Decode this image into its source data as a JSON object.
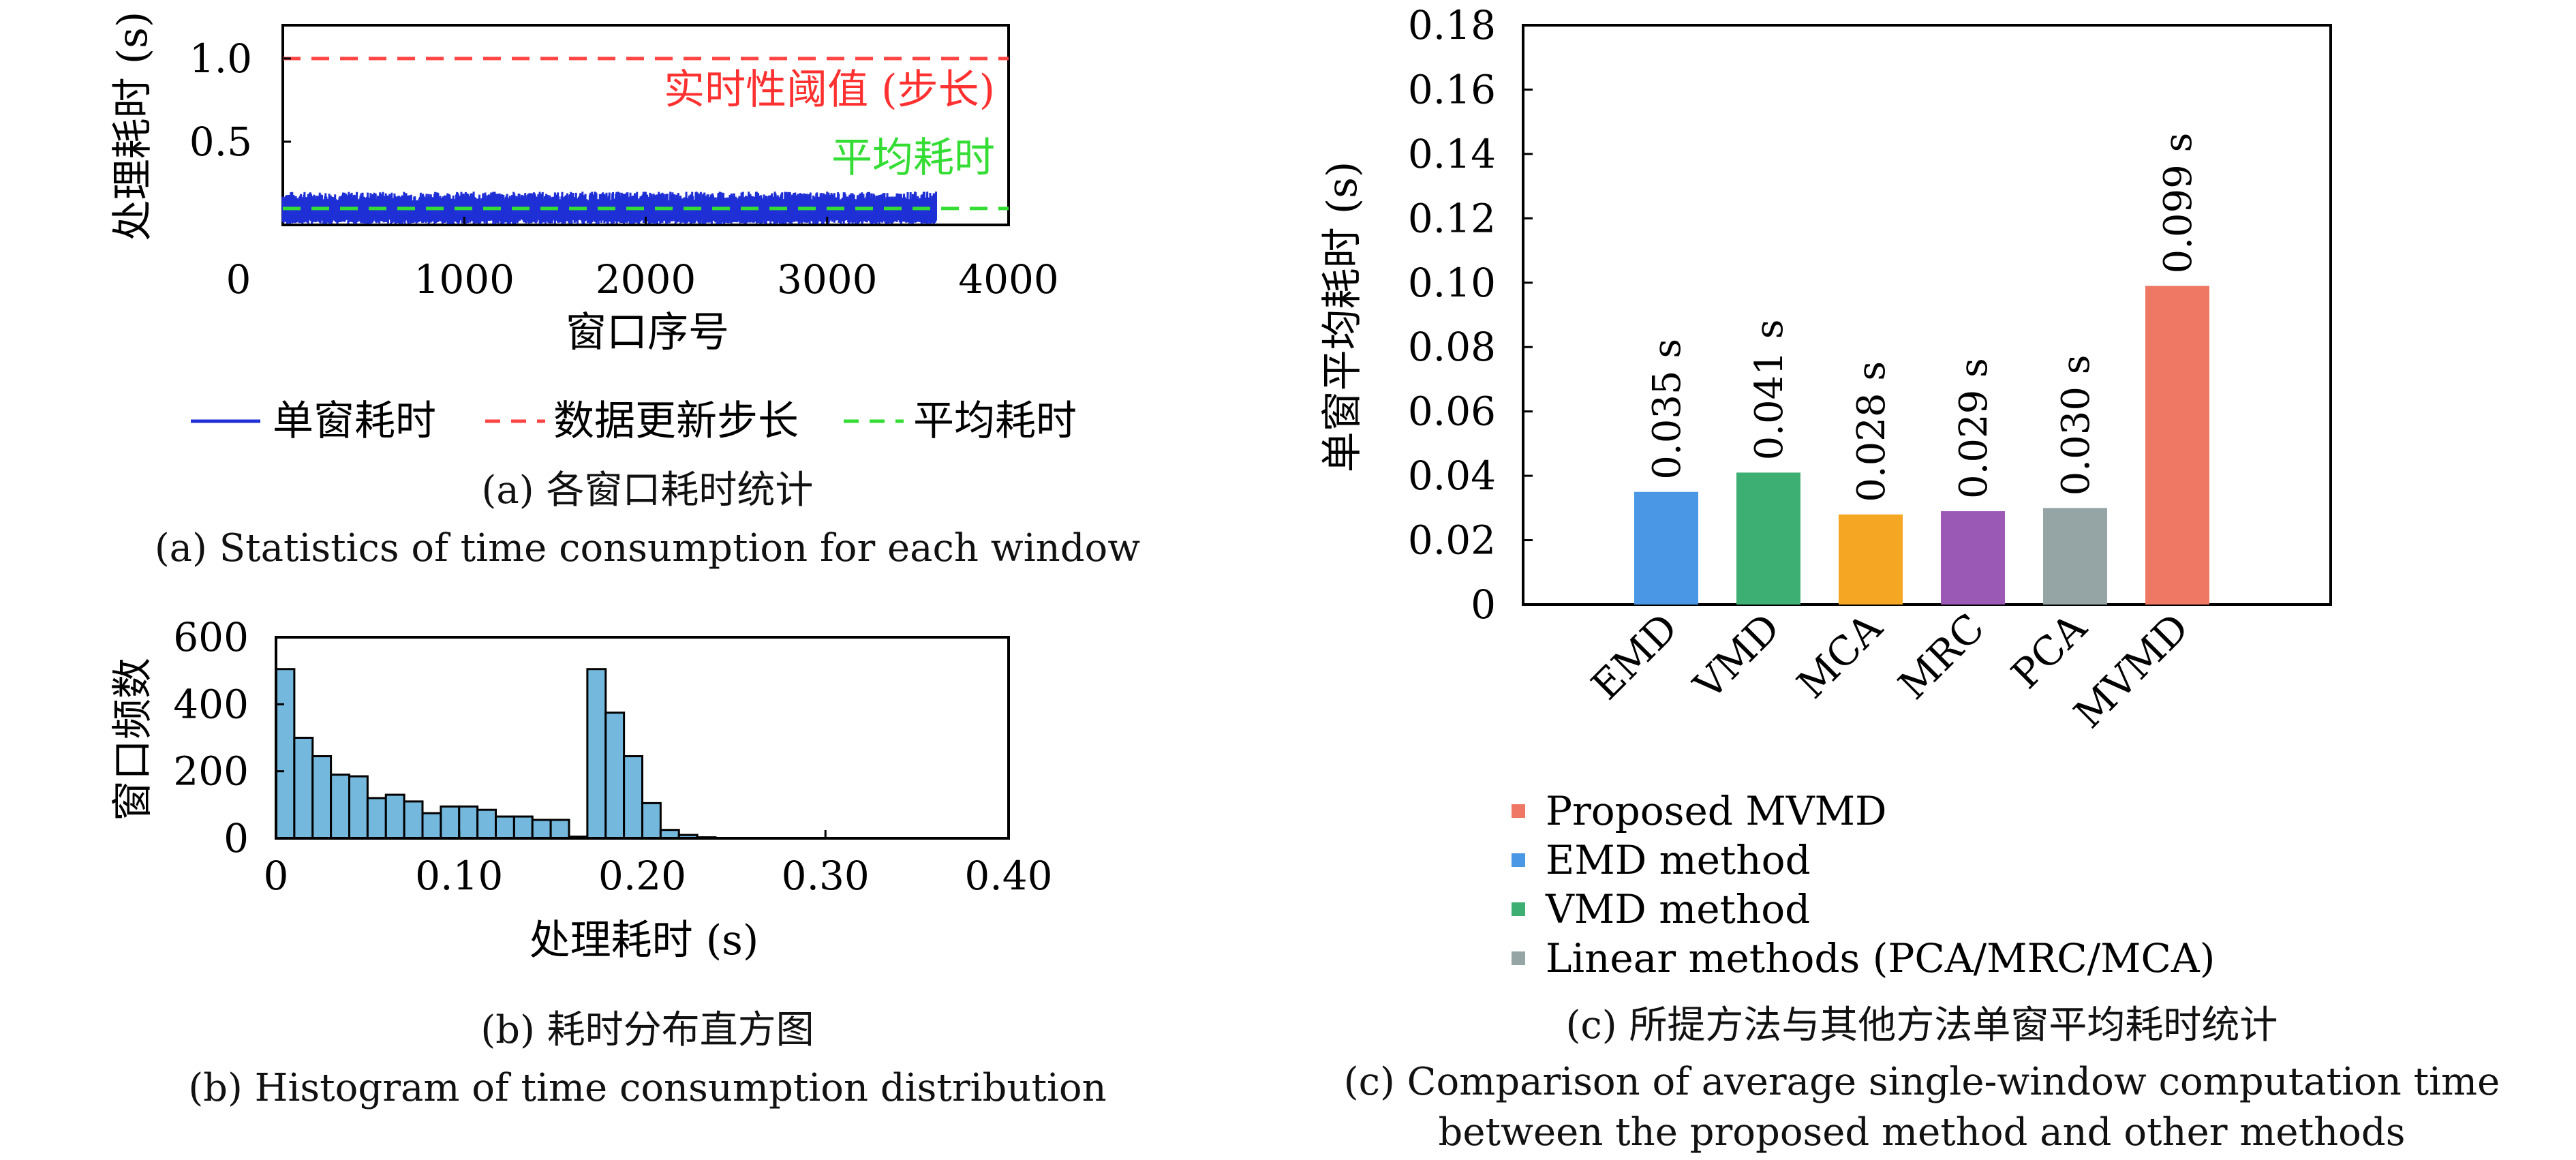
{
  "chart_data": [
    {
      "type": "line",
      "caption_zh": "(a) 各窗口耗时统计",
      "caption_en": "(a) Statistics of time consumption for each window",
      "xlabel": "窗口序号",
      "ylabel": "处理耗时 (s)",
      "xlim": [
        0,
        4000
      ],
      "ylim": [
        0,
        1.2
      ],
      "xticks": [
        "0",
        "1000",
        "2000",
        "3000",
        "4000"
      ],
      "yticks": [
        "0.5",
        "1.0"
      ],
      "grid": false,
      "legend_position": "bottom",
      "series": [
        {
          "name": "单窗耗时",
          "color": "#1f2fd6",
          "style": "noisy-band",
          "x_range": [
            0,
            3600
          ],
          "values_range": [
            0.0,
            0.2
          ]
        },
        {
          "name": "数据更新步长",
          "color": "#ff4444",
          "style": "dashed",
          "values": [
            1.0
          ]
        },
        {
          "name": "平均耗时",
          "color": "#33dd33",
          "style": "dashed",
          "values": [
            0.099
          ]
        }
      ],
      "annotations": [
        {
          "text": "实时性阈值 (步长)",
          "color": "#ff3030"
        },
        {
          "text": "平均耗时",
          "color": "#33dd33"
        }
      ]
    },
    {
      "type": "bar",
      "caption_zh": "(b) 耗时分布直方图",
      "caption_en": "(b) Histogram of time consumption distribution",
      "xlabel": "处理耗时 (s)",
      "ylabel": "窗口频数",
      "xlim": [
        0,
        0.4
      ],
      "ylim": [
        0,
        600
      ],
      "xticks": [
        "0",
        "0.10",
        "0.20",
        "0.30",
        "0.40"
      ],
      "yticks": [
        "0",
        "200",
        "400",
        "600"
      ],
      "bin_width": 0.01,
      "bar_color": "#74b8dd",
      "bin_starts": [
        0.0,
        0.01,
        0.02,
        0.03,
        0.04,
        0.05,
        0.06,
        0.07,
        0.08,
        0.09,
        0.1,
        0.11,
        0.12,
        0.13,
        0.14,
        0.15,
        0.16,
        0.17,
        0.18,
        0.19,
        0.2,
        0.21,
        0.22,
        0.23
      ],
      "values": [
        505,
        300,
        245,
        190,
        185,
        120,
        130,
        110,
        75,
        95,
        95,
        85,
        65,
        65,
        55,
        55,
        5,
        505,
        375,
        245,
        105,
        25,
        10,
        3
      ]
    },
    {
      "type": "bar",
      "caption_zh": "(c) 所提方法与其他方法单窗平均耗时统计",
      "caption_en_line1": "(c) Comparison of average single-window computation time",
      "caption_en_line2": "between the proposed method and other methods",
      "ylabel": "单窗平均耗时 (s)",
      "ylim": [
        0,
        0.18
      ],
      "yticks": [
        "0",
        "0.02",
        "0.04",
        "0.06",
        "0.08",
        "0.10",
        "0.12",
        "0.14",
        "0.16",
        "0.18"
      ],
      "categories": [
        "EMD",
        "VMD",
        "MCA",
        "MRC",
        "PCA",
        "MVMD"
      ],
      "values": [
        0.035,
        0.041,
        0.028,
        0.029,
        0.03,
        0.099
      ],
      "data_labels": [
        "0.035 s",
        "0.041 s",
        "0.028 s",
        "0.029 s",
        "0.030 s",
        "0.099 s"
      ],
      "colors": [
        "#4a97e6",
        "#3daf73",
        "#f5a623",
        "#9b59b6",
        "#95a5a6",
        "#ee7863"
      ],
      "legend_position": "bottom",
      "legend": [
        {
          "label": "Proposed MVMD",
          "color": "#ee7863"
        },
        {
          "label": "EMD method",
          "color": "#4a97e6"
        },
        {
          "label": "VMD method",
          "color": "#3daf73"
        },
        {
          "label": "Linear methods (PCA/MRC/MCA)",
          "color": "#95a5a6"
        }
      ]
    }
  ]
}
